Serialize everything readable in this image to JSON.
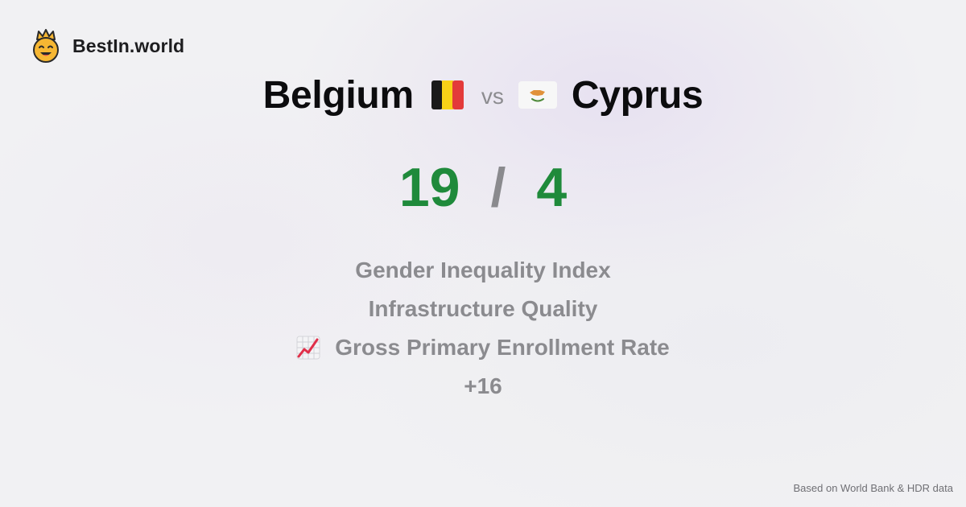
{
  "brand": {
    "name": "BestIn.world",
    "logo_icon": "crown-face-icon"
  },
  "comparison": {
    "left": {
      "name": "Belgium",
      "flag_icon": "belgium-flag-icon",
      "score": "19"
    },
    "vs_label": "vs",
    "right": {
      "name": "Cyprus",
      "flag_icon": "cyprus-flag-icon",
      "score": "4"
    },
    "separator": "/"
  },
  "metrics": [
    {
      "label": "Gender Inequality Index"
    },
    {
      "label": "Infrastructure Quality"
    },
    {
      "label": "Gross Primary Enrollment Rate",
      "icon": "chart-increasing-icon"
    }
  ],
  "more_label": "+16",
  "footer": {
    "source_note": "Based on World Bank & HDR data"
  },
  "colors": {
    "score": "#1f8a3b",
    "muted_text": "#8b8b8f",
    "background": "#f1f1f3",
    "logo": "#f6b733"
  }
}
